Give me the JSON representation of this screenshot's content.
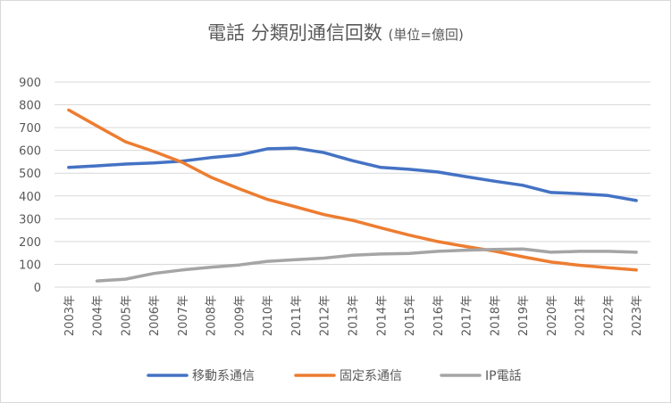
{
  "chart_data": {
    "type": "line",
    "title": "電話 分類別通信回数",
    "title_unit": "(単位=億回)",
    "xlabel": "",
    "ylabel": "",
    "x": [
      "2003年",
      "2004年",
      "2005年",
      "2006年",
      "2007年",
      "2008年",
      "2009年",
      "2010年",
      "2011年",
      "2012年",
      "2013年",
      "2014年",
      "2015年",
      "2016年",
      "2017年",
      "2018年",
      "2019年",
      "2020年",
      "2021年",
      "2022年",
      "2023年"
    ],
    "ylim": [
      0,
      900
    ],
    "yticks": [
      0,
      100,
      200,
      300,
      400,
      500,
      600,
      700,
      800,
      900
    ],
    "grid": true,
    "legend_position": "bottom",
    "series": [
      {
        "name": "移動系通信",
        "color": "#4472C4",
        "values": [
          525,
          532,
          540,
          545,
          553,
          568,
          580,
          607,
          610,
          590,
          555,
          525,
          517,
          505,
          485,
          465,
          447,
          415,
          410,
          402,
          380
        ]
      },
      {
        "name": "固定系通信",
        "color": "#ED7D31",
        "values": [
          777,
          707,
          638,
          595,
          548,
          483,
          432,
          385,
          352,
          318,
          293,
          260,
          228,
          200,
          178,
          158,
          133,
          110,
          96,
          85,
          75
        ]
      },
      {
        "name": "IP電話",
        "color": "#A5A5A5",
        "values": [
          null,
          27,
          35,
          60,
          75,
          87,
          97,
          113,
          120,
          127,
          140,
          145,
          148,
          157,
          162,
          165,
          167,
          153,
          157,
          157,
          153
        ]
      }
    ]
  }
}
